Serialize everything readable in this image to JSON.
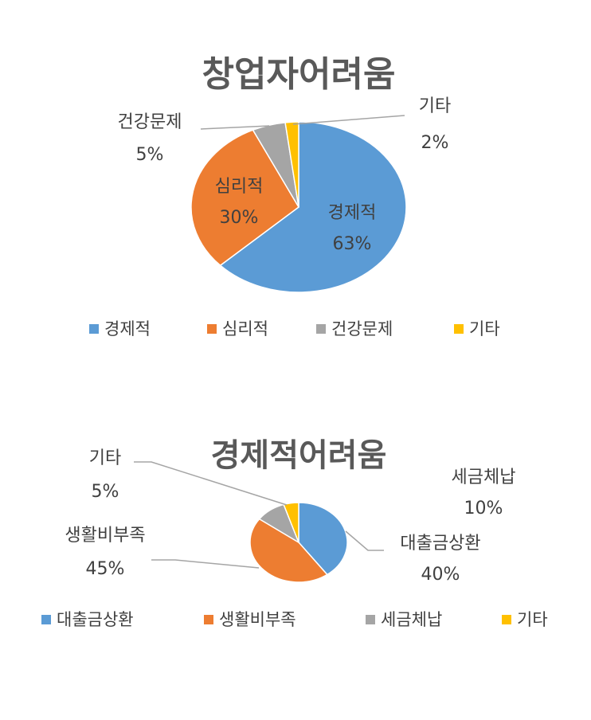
{
  "chart_data": [
    {
      "type": "pie",
      "title": "창업자어려움",
      "labels": [
        "경제적",
        "심리적",
        "건강문제",
        "기타"
      ],
      "values": [
        63,
        30,
        5,
        2
      ],
      "value_labels": [
        "63%",
        "30%",
        "5%",
        "2%"
      ],
      "colors": [
        "#5B9BD5",
        "#ED7D31",
        "#A5A5A5",
        "#FFC000"
      ],
      "legend": [
        "경제적",
        "심리적",
        "건강문제",
        "기타"
      ],
      "legend_position": "bottom"
    },
    {
      "type": "pie",
      "title": "경제적어려움",
      "labels": [
        "대출금상환",
        "생활비부족",
        "세금체납",
        "기타"
      ],
      "values": [
        40,
        45,
        10,
        5
      ],
      "value_labels": [
        "40%",
        "45%",
        "10%",
        "5%"
      ],
      "colors": [
        "#5B9BD5",
        "#ED7D31",
        "#A5A5A5",
        "#FFC000"
      ],
      "legend": [
        "대출금상환",
        "생활비부족",
        "세금체납",
        "기타"
      ],
      "legend_position": "bottom"
    }
  ]
}
